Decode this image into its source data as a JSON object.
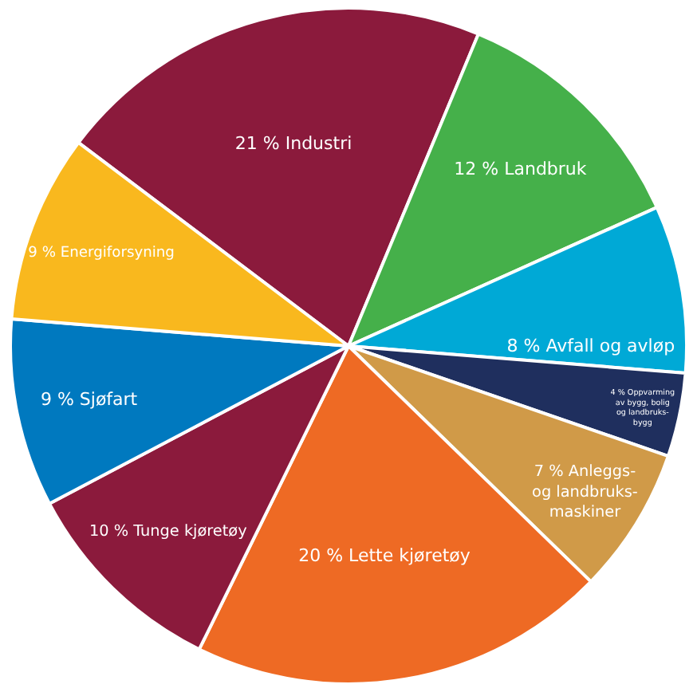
{
  "chart_data": {
    "type": "pie",
    "categories": [
      "Industri",
      "Landbruk",
      "Avfall og avløp",
      "Oppvarming av bygg, bolig og landbruks-bygg",
      "Anleggs- og landbruks-maskiner",
      "Lette kjøretøy",
      "Tunge kjøretøy",
      "Sjøfart",
      "Energiforsyning"
    ],
    "values": [
      21,
      12,
      8,
      4,
      7,
      20,
      10,
      9,
      9
    ],
    "value_labels": [
      "21 %",
      "12 %",
      "8 %",
      "4 %",
      "7 %",
      "20 %",
      "10 %",
      "9 %",
      "9 %"
    ],
    "colors": [
      "#8b1a3c",
      "#45b04a",
      "#00a9d6",
      "#1f2f5e",
      "#d09a48",
      "#ee6a24",
      "#8b1a3c",
      "#0079bf",
      "#f9b81e"
    ],
    "legend": false
  }
}
